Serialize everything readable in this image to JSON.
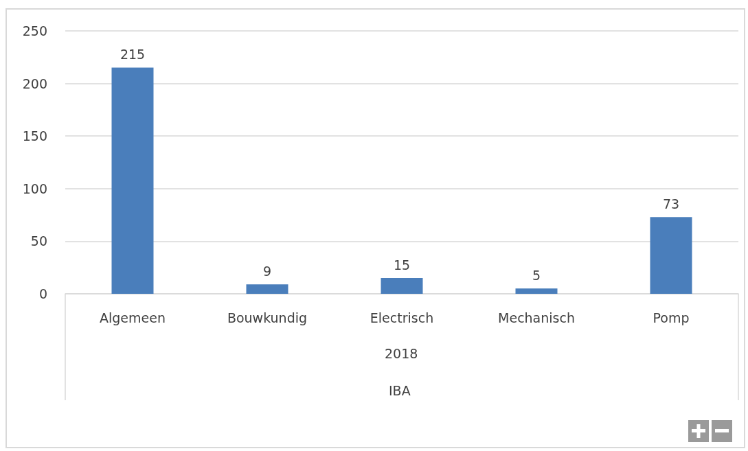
{
  "chart_data": {
    "type": "bar",
    "categories": [
      "Algemeen",
      "Bouwkundig",
      "Electrisch",
      "Mechanisch",
      "Pomp"
    ],
    "values": [
      215,
      9,
      15,
      5,
      73
    ],
    "color": "#4a7ebb",
    "xlabel": "2018",
    "annotations": [
      "IBA"
    ],
    "ylim": [
      0,
      250
    ],
    "yticks": [
      0,
      50,
      100,
      150,
      200,
      250
    ],
    "grid": "y",
    "data_labels": true
  }
}
